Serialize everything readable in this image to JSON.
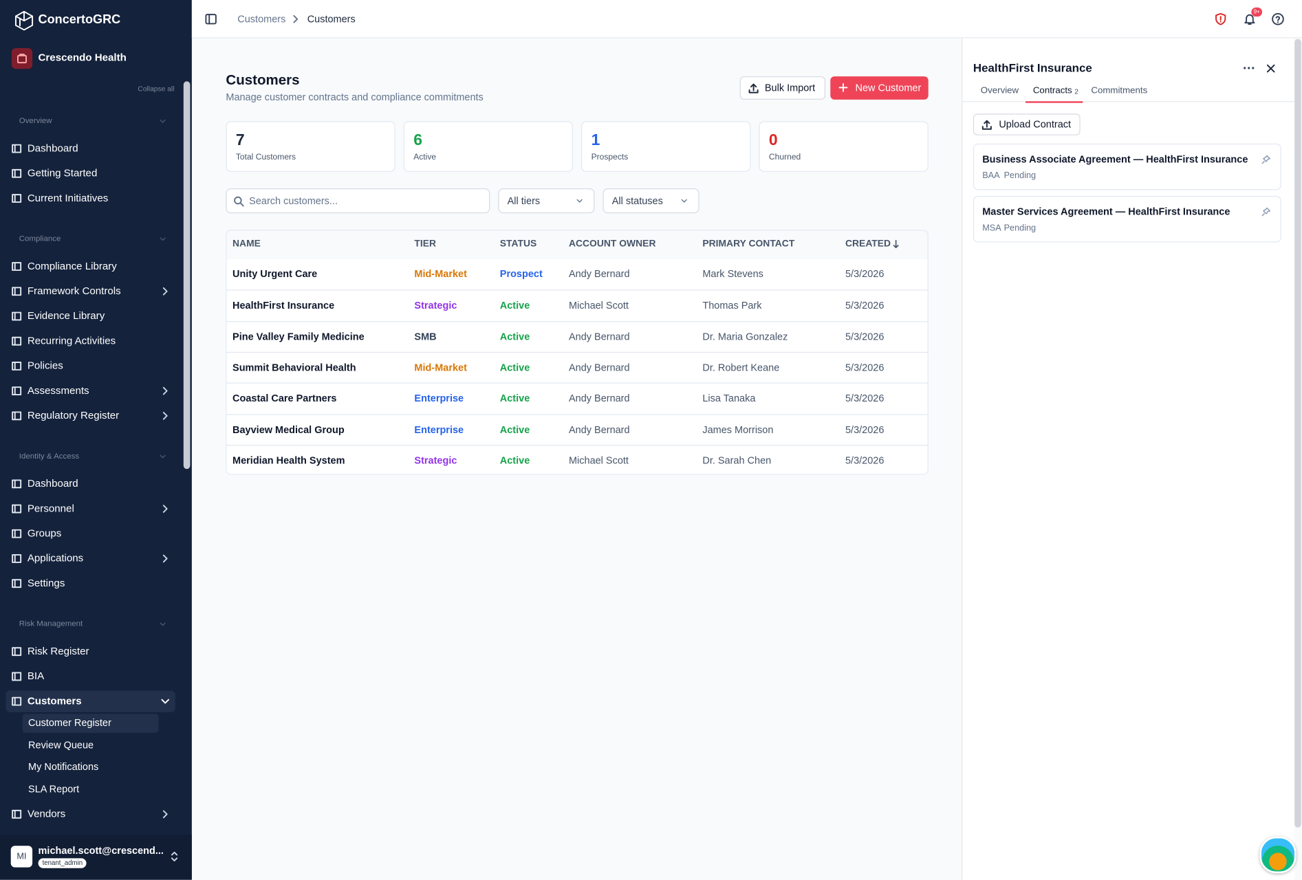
{
  "sidebar": {
    "brand": "ConcertoGRC",
    "org": "Crescendo Health",
    "collapse_all": "Collapse all",
    "sections": [
      {
        "title": "Overview",
        "items": [
          {
            "label": "Dashboard"
          },
          {
            "label": "Getting Started"
          },
          {
            "label": "Current Initiatives"
          }
        ]
      },
      {
        "title": "Compliance",
        "items": [
          {
            "label": "Compliance Library"
          },
          {
            "label": "Framework Controls",
            "expandable": true
          },
          {
            "label": "Evidence Library"
          },
          {
            "label": "Recurring Activities"
          },
          {
            "label": "Policies"
          },
          {
            "label": "Assessments",
            "expandable": true
          },
          {
            "label": "Regulatory Register",
            "expandable": true
          }
        ]
      },
      {
        "title": "Identity & Access",
        "items": [
          {
            "label": "Dashboard"
          },
          {
            "label": "Personnel",
            "expandable": true
          },
          {
            "label": "Groups"
          },
          {
            "label": "Applications",
            "expandable": true
          },
          {
            "label": "Settings"
          }
        ]
      },
      {
        "title": "Risk Management",
        "items": [
          {
            "label": "Risk Register"
          },
          {
            "label": "BIA"
          },
          {
            "label": "Customers",
            "expanded": true,
            "active": true,
            "children": [
              {
                "label": "Customer Register",
                "active": true
              },
              {
                "label": "Review Queue"
              },
              {
                "label": "My Notifications"
              },
              {
                "label": "SLA Report"
              }
            ]
          },
          {
            "label": "Vendors",
            "expandable": true
          }
        ]
      }
    ],
    "user": {
      "initials": "MI",
      "email": "michael.scott@crescend...",
      "role": "tenant_admin"
    }
  },
  "topbar": {
    "breadcrumbs": [
      "Customers",
      "Customers"
    ],
    "notification_badge": "9+"
  },
  "page": {
    "title": "Customers",
    "subtitle": "Manage customer contracts and compliance commitments",
    "buttons": {
      "bulk_import": "Bulk Import",
      "new_customer": "New Customer"
    },
    "stats": [
      {
        "value": 7,
        "label": "Total Customers",
        "color": "#1e293b"
      },
      {
        "value": 6,
        "label": "Active",
        "color": "#16a34a"
      },
      {
        "value": 1,
        "label": "Prospects",
        "color": "#2563eb"
      },
      {
        "value": 0,
        "label": "Churned",
        "color": "#dc2626"
      }
    ],
    "search_placeholder": "Search customers...",
    "filters": [
      "All tiers",
      "All statuses"
    ],
    "table": {
      "columns": [
        "NAME",
        "TIER",
        "STATUS",
        "ACCOUNT OWNER",
        "PRIMARY CONTACT",
        "CREATED"
      ],
      "rows": [
        {
          "name": "Unity Urgent Care",
          "tier": "Mid-Market",
          "tier_color": "#d97706",
          "status": "Prospect",
          "status_color": "#2563eb",
          "owner": "Andy Bernard",
          "contact": "Mark Stevens",
          "created": "5/3/2026"
        },
        {
          "name": "HealthFirst Insurance",
          "tier": "Strategic",
          "tier_color": "#9333ea",
          "status": "Active",
          "status_color": "#16a34a",
          "owner": "Michael Scott",
          "contact": "Thomas Park",
          "created": "5/3/2026"
        },
        {
          "name": "Pine Valley Family Medicine",
          "tier": "SMB",
          "tier_color": "#334155",
          "status": "Active",
          "status_color": "#16a34a",
          "owner": "Andy Bernard",
          "contact": "Dr. Maria Gonzalez",
          "created": "5/3/2026"
        },
        {
          "name": "Summit Behavioral Health",
          "tier": "Mid-Market",
          "tier_color": "#d97706",
          "status": "Active",
          "status_color": "#16a34a",
          "owner": "Andy Bernard",
          "contact": "Dr. Robert Keane",
          "created": "5/3/2026"
        },
        {
          "name": "Coastal Care Partners",
          "tier": "Enterprise",
          "tier_color": "#2563eb",
          "status": "Active",
          "status_color": "#16a34a",
          "owner": "Andy Bernard",
          "contact": "Lisa Tanaka",
          "created": "5/3/2026"
        },
        {
          "name": "Bayview Medical Group",
          "tier": "Enterprise",
          "tier_color": "#2563eb",
          "status": "Active",
          "status_color": "#16a34a",
          "owner": "Andy Bernard",
          "contact": "James Morrison",
          "created": "5/3/2026"
        },
        {
          "name": "Meridian Health System",
          "tier": "Strategic",
          "tier_color": "#9333ea",
          "status": "Active",
          "status_color": "#16a34a",
          "owner": "Michael Scott",
          "contact": "Dr. Sarah Chen",
          "created": "5/3/2026"
        }
      ]
    }
  },
  "panel": {
    "title": "HealthFirst Insurance",
    "tabs": [
      {
        "label": "Overview"
      },
      {
        "label": "Contracts",
        "count": 2,
        "active": true
      },
      {
        "label": "Commitments"
      }
    ],
    "upload": "Upload Contract",
    "contracts": [
      {
        "title": "Business Associate Agreement — HealthFirst Insurance",
        "type": "BAA",
        "status": "Pending"
      },
      {
        "title": "Master Services Agreement — HealthFirst Insurance",
        "type": "MSA",
        "status": "Pending"
      }
    ]
  }
}
